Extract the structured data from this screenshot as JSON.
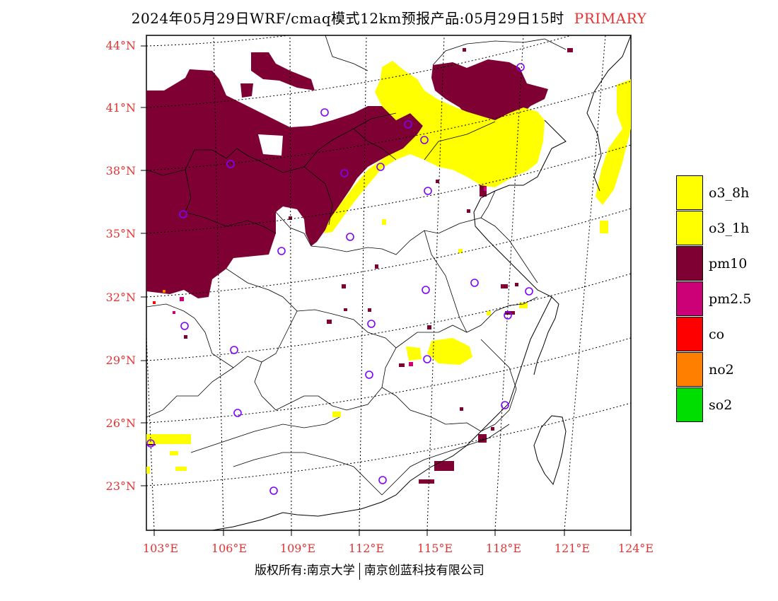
{
  "title": {
    "main": "2024年05月29日WRF/cmaq模式12km预报产品:05月29日15时",
    "tag": "PRIMARY"
  },
  "lat_labels": [
    "44°N",
    "41°N",
    "38°N",
    "35°N",
    "32°N",
    "29°N",
    "26°N",
    "23°N"
  ],
  "lon_labels": [
    "103°E",
    "106°E",
    "109°E",
    "112°E",
    "115°E",
    "118°E",
    "121°E",
    "124°E"
  ],
  "legend": [
    {
      "label": "o3_8h",
      "color": "#ffff00"
    },
    {
      "label": "o3_1h",
      "color": "#ffff00"
    },
    {
      "label": "pm10",
      "color": "#7f0033"
    },
    {
      "label": "pm2.5",
      "color": "#cc0077"
    },
    {
      "label": "co",
      "color": "#ff0000"
    },
    {
      "label": "no2",
      "color": "#ff7f00"
    },
    {
      "label": "so2",
      "color": "#00dd00"
    }
  ],
  "copyright": {
    "left": "版权所有:南京大学",
    "right": "南京创蓝科技有限公司"
  }
}
